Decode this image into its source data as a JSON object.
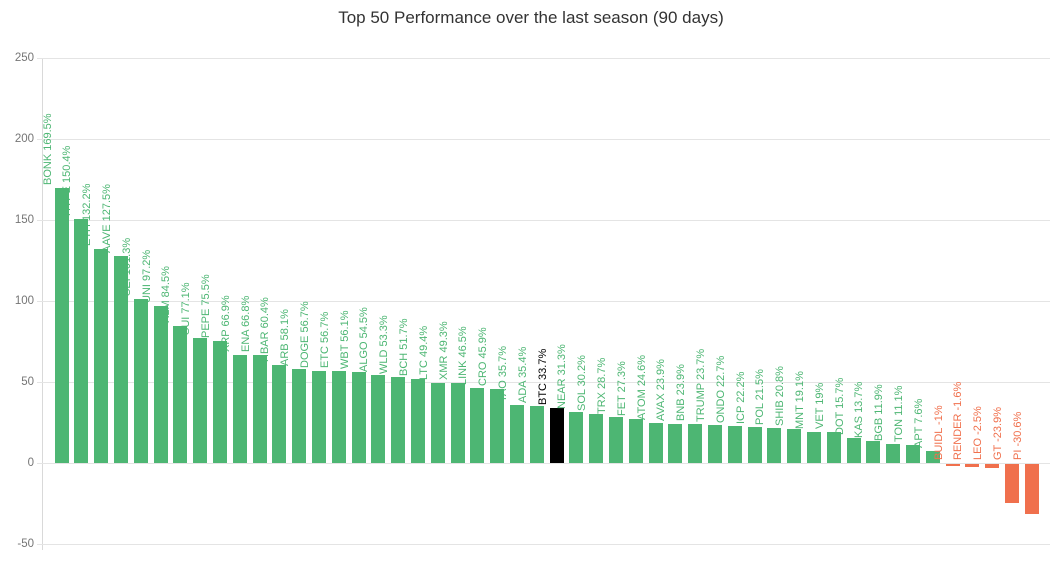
{
  "chart_data": {
    "type": "bar",
    "title": "Top 50 Performance over the last season (90 days)",
    "categories": [
      "BONK",
      "HYPE",
      "ETH",
      "AAVE",
      "SEI",
      "UNI",
      "XLM",
      "SUI",
      "PEPE",
      "XRP",
      "ENA",
      "HBAR",
      "ARB",
      "DOGE",
      "ETC",
      "WBT",
      "ALGO",
      "WLD",
      "BCH",
      "LTC",
      "XMR",
      "LINK",
      "CRO",
      "TAO",
      "ADA",
      "BTC",
      "NEAR",
      "SOL",
      "TRX",
      "FET",
      "ATOM",
      "AVAX",
      "BNB",
      "TRUMP",
      "ONDO",
      "ICP",
      "POL",
      "SHIB",
      "MNT",
      "VET",
      "DOT",
      "KAS",
      "BGB",
      "TON",
      "APT",
      "BUIDL",
      "RENDER",
      "LEO",
      "GT",
      "PI"
    ],
    "values": [
      169.5,
      150.4,
      132.2,
      127.5,
      101.3,
      97.2,
      84.5,
      77.1,
      75.5,
      66.9,
      66.8,
      60.4,
      58.1,
      56.7,
      56.7,
      56.1,
      54.5,
      53.3,
      51.7,
      49.4,
      49.3,
      46.5,
      45.9,
      35.7,
      35.4,
      33.7,
      31.3,
      30.2,
      28.7,
      27.3,
      24.6,
      23.9,
      23.9,
      23.7,
      22.7,
      22.2,
      21.5,
      20.8,
      19.1,
      19,
      15.7,
      13.7,
      11.9,
      11.1,
      7.6,
      -1,
      -1.6,
      -2.5,
      -23.9,
      -30.6
    ],
    "bar_labels": [
      "BONK 169.5%",
      "HYPE 150.4%",
      "ETH 132.2%",
      "AAVE 127.5%",
      "SEI 101.3%",
      "UNI 97.2%",
      "XLM 84.5%",
      "SUI 77.1%",
      "PEPE 75.5%",
      "XRP 66.9%",
      "ENA 66.8%",
      "HBAR 60.4%",
      "ARB 58.1%",
      "DOGE 56.7%",
      "ETC 56.7%",
      "WBT 56.1%",
      "ALGO 54.5%",
      "WLD 53.3%",
      "BCH 51.7%",
      "LTC 49.4%",
      "XMR 49.3%",
      "LINK 46.5%",
      "CRO 45.9%",
      "TAO 35.7%",
      "ADA 35.4%",
      "BTC 33.7%",
      "NEAR 31.3%",
      "SOL 30.2%",
      "TRX 28.7%",
      "FET 27.3%",
      "ATOM 24.6%",
      "AVAX 23.9%",
      "BNB 23.9%",
      "TRUMP 23.7%",
      "ONDO 22.7%",
      "ICP 22.2%",
      "POL 21.5%",
      "SHIB 20.8%",
      "MNT 19.1%",
      "VET 19%",
      "DOT 15.7%",
      "KAS 13.7%",
      "BGB 11.9%",
      "TON 11.1%",
      "APT 7.6%",
      "BUIDL -1%",
      "RENDER -1.6%",
      "LEO -2.5%",
      "GT -23.9%",
      "PI -30.6%"
    ],
    "highlight_category": "BTC",
    "yticks": [
      250,
      200,
      150,
      100,
      50,
      0,
      -50
    ],
    "ylim": [
      -50,
      250
    ],
    "grid": true,
    "legend": "none",
    "colors": {
      "positive": "#4db673",
      "negative": "#f0704d",
      "highlight": "#000000",
      "title": "#333333",
      "axis_label": "#757575",
      "gridline": "#e4e4e4",
      "axis_line": "#d9d9d9"
    }
  }
}
